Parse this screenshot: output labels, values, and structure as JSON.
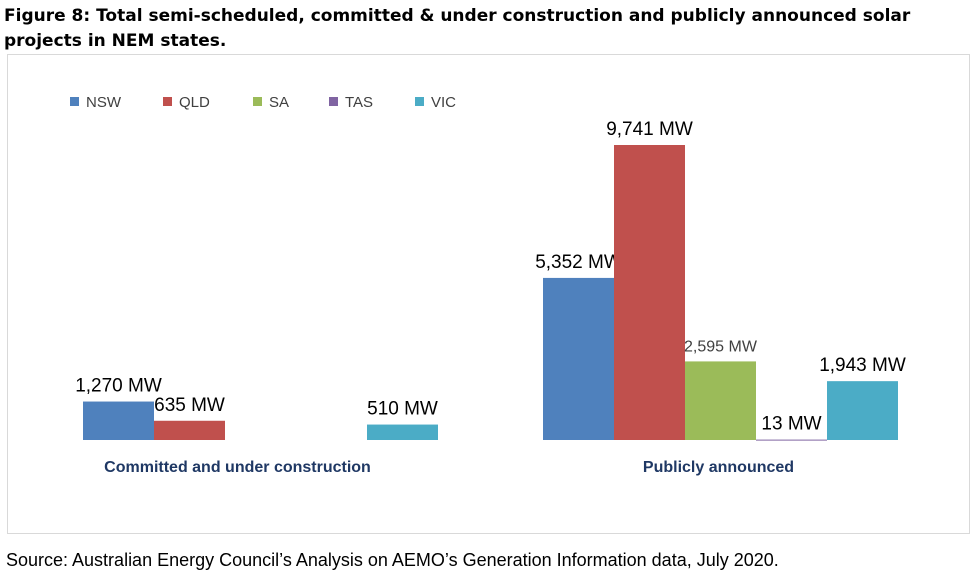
{
  "figure": {
    "title": "Figure 8: Total semi-scheduled, committed & under construction and publicly announced solar projects in NEM states.",
    "source": "Source: Australian Energy Council’s Analysis on AEMO’s Generation Information data, July 2020."
  },
  "chart_data": {
    "type": "bar",
    "title": "",
    "xlabel": "",
    "ylabel": "",
    "categories": [
      "Committed and under construction",
      "Publicly announced"
    ],
    "ylim": [
      0,
      10000
    ],
    "grid": false,
    "legend_position": "top-left",
    "series": [
      {
        "name": "NSW",
        "color": "#4f81bd",
        "values": [
          1270,
          5352
        ],
        "labels": [
          "1,270 MW",
          "5,352 MW"
        ]
      },
      {
        "name": "QLD",
        "color": "#c0504d",
        "values": [
          635,
          9741
        ],
        "labels": [
          "635 MW",
          "9,741 MW"
        ]
      },
      {
        "name": "SA",
        "color": "#9bbb59",
        "values": [
          0,
          2595
        ],
        "labels": [
          "",
          "2,595 MW"
        ]
      },
      {
        "name": "TAS",
        "color": "#8064a2",
        "values": [
          0,
          13
        ],
        "labels": [
          "",
          "13 MW"
        ]
      },
      {
        "name": "VIC",
        "color": "#4bacc6",
        "values": [
          510,
          1943
        ],
        "labels": [
          "510 MW",
          "1,943 MW"
        ]
      }
    ]
  }
}
